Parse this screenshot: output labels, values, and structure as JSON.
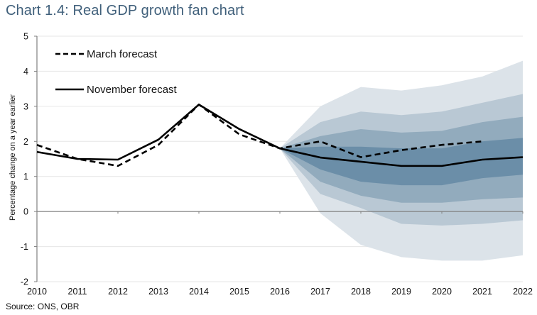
{
  "title": "Chart 1.4: Real GDP growth fan chart",
  "source": "Source: ONS, OBR",
  "colors": {
    "title": "#3f5f7a",
    "band_outer": "#dce3e9",
    "band_2": "#b9c8d4",
    "band_3": "#92abbd",
    "band_inner": "#6b8ea8",
    "line": "#000000",
    "grid": "#e6e6e6",
    "axis": "#808080"
  },
  "chart_data": {
    "type": "area",
    "title": "Chart 1.4: Real GDP growth fan chart",
    "xlabel": "",
    "ylabel": "Percentage change on a year earlier",
    "x": [
      2010,
      2011,
      2012,
      2013,
      2014,
      2015,
      2016,
      2017,
      2018,
      2019,
      2020,
      2021,
      2022
    ],
    "xticks": [
      "2010",
      "2011",
      "2012",
      "2013",
      "2014",
      "2015",
      "2016",
      "2017",
      "2018",
      "2019",
      "2020",
      "2021",
      "2022"
    ],
    "ylim": [
      -2,
      5
    ],
    "yticks": [
      "5",
      "4",
      "3",
      "2",
      "1",
      "0",
      "-1",
      "-2"
    ],
    "ytick_values": [
      5,
      4,
      3,
      2,
      1,
      0,
      -1,
      -2
    ],
    "grid": true,
    "legend_position": "top-left",
    "series": [
      {
        "name": "March forecast",
        "style": "dashed",
        "x": [
          2010,
          2011,
          2012,
          2013,
          2014,
          2015,
          2016,
          2017,
          2018,
          2019,
          2020,
          2021
        ],
        "values": [
          1.9,
          1.5,
          1.3,
          1.9,
          3.05,
          2.2,
          1.8,
          2.0,
          1.55,
          1.75,
          1.9,
          2.0
        ]
      },
      {
        "name": "November forecast",
        "style": "solid",
        "x": [
          2010,
          2011,
          2012,
          2013,
          2014,
          2015,
          2016,
          2017,
          2018,
          2019,
          2020,
          2021,
          2022
        ],
        "values": [
          1.7,
          1.5,
          1.48,
          2.05,
          3.05,
          2.35,
          1.8,
          1.54,
          1.42,
          1.3,
          1.3,
          1.48,
          1.55
        ]
      }
    ],
    "fan": {
      "x": [
        2016,
        2017,
        2018,
        2019,
        2020,
        2021,
        2022
      ],
      "bands": [
        {
          "name": "outer",
          "upper": [
            1.8,
            3.0,
            3.55,
            3.45,
            3.6,
            3.85,
            4.3
          ],
          "lower": [
            1.8,
            -0.05,
            -0.95,
            -1.3,
            -1.4,
            -1.4,
            -1.25
          ]
        },
        {
          "name": "band2",
          "upper": [
            1.8,
            2.55,
            2.85,
            2.75,
            2.85,
            3.1,
            3.35
          ],
          "lower": [
            1.8,
            0.5,
            0.1,
            -0.35,
            -0.4,
            -0.35,
            -0.25
          ]
        },
        {
          "name": "band3",
          "upper": [
            1.8,
            2.15,
            2.35,
            2.25,
            2.3,
            2.55,
            2.7
          ],
          "lower": [
            1.8,
            0.85,
            0.45,
            0.25,
            0.25,
            0.35,
            0.4
          ]
        },
        {
          "name": "inner",
          "upper": [
            1.8,
            1.85,
            1.85,
            1.8,
            1.8,
            2.0,
            2.1
          ],
          "lower": [
            1.8,
            1.2,
            0.85,
            0.75,
            0.75,
            0.95,
            1.05
          ]
        }
      ]
    }
  }
}
